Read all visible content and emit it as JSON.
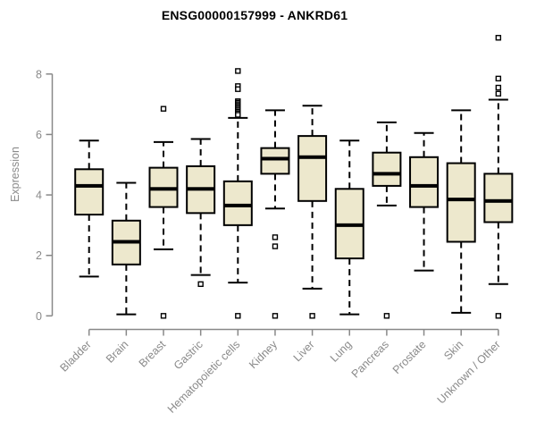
{
  "chart_data": {
    "type": "boxplot",
    "title": "ENSG00000157999 - ANKRD61",
    "ylabel": "Expression",
    "xlabel": "",
    "yticks": [
      0,
      2,
      4,
      6,
      8
    ],
    "ylim": [
      0,
      8
    ],
    "categories": [
      "Bladder",
      "Brain",
      "Breast",
      "Gastric",
      "Hematopoietic cells",
      "Kidney",
      "Liver",
      "Lung",
      "Pancreas",
      "Prostate",
      "Skin",
      "Unknown / Other"
    ],
    "boxes": [
      {
        "category": "Bladder",
        "whisker_low": 1.3,
        "q1": 3.35,
        "median": 4.3,
        "q3": 4.85,
        "whisker_high": 5.8,
        "outliers": []
      },
      {
        "category": "Brain",
        "whisker_low": 0.05,
        "q1": 1.7,
        "median": 2.45,
        "q3": 3.15,
        "whisker_high": 4.4,
        "outliers": []
      },
      {
        "category": "Breast",
        "whisker_low": 2.2,
        "q1": 3.6,
        "median": 4.2,
        "q3": 4.9,
        "whisker_high": 5.75,
        "outliers": [
          6.85,
          0.0
        ]
      },
      {
        "category": "Gastric",
        "whisker_low": 1.35,
        "q1": 3.4,
        "median": 4.2,
        "q3": 4.95,
        "whisker_high": 5.85,
        "outliers": [
          1.05
        ]
      },
      {
        "category": "Hematopoietic cells",
        "whisker_low": 1.1,
        "q1": 3.0,
        "median": 3.65,
        "q3": 4.45,
        "whisker_high": 6.55,
        "outliers": [
          8.1,
          7.6,
          7.5,
          7.1,
          7.05,
          7.0,
          6.95,
          6.9,
          6.85,
          6.8,
          6.75,
          6.7,
          6.65,
          0.0
        ]
      },
      {
        "category": "Kidney",
        "whisker_low": 3.55,
        "q1": 4.7,
        "median": 5.2,
        "q3": 5.55,
        "whisker_high": 6.8,
        "outliers": [
          2.6,
          2.3,
          0.0
        ]
      },
      {
        "category": "Liver",
        "whisker_low": 0.9,
        "q1": 3.8,
        "median": 5.25,
        "q3": 5.95,
        "whisker_high": 6.95,
        "outliers": [
          0.0
        ]
      },
      {
        "category": "Lung",
        "whisker_low": 0.05,
        "q1": 1.9,
        "median": 3.0,
        "q3": 4.2,
        "whisker_high": 5.8,
        "outliers": []
      },
      {
        "category": "Pancreas",
        "whisker_low": 3.65,
        "q1": 4.3,
        "median": 4.7,
        "q3": 5.4,
        "whisker_high": 6.4,
        "outliers": [
          0.0
        ]
      },
      {
        "category": "Prostate",
        "whisker_low": 1.5,
        "q1": 3.6,
        "median": 4.3,
        "q3": 5.25,
        "whisker_high": 6.05,
        "outliers": []
      },
      {
        "category": "Skin",
        "whisker_low": 0.1,
        "q1": 2.45,
        "median": 3.85,
        "q3": 5.05,
        "whisker_high": 6.8,
        "outliers": []
      },
      {
        "category": "Unknown / Other",
        "whisker_low": 1.05,
        "q1": 3.1,
        "median": 3.8,
        "q3": 4.7,
        "whisker_high": 7.15,
        "outliers": [
          9.2,
          7.85,
          7.55,
          7.35,
          0.0
        ]
      }
    ],
    "style": {
      "box_fill": "#EDE8CD",
      "box_stroke": "#000000",
      "median_color": "#000000",
      "outlier_fill": "#FFFFFF",
      "axis_color": "#888888",
      "label_color": "#8A8A8A",
      "title_color": "#000000",
      "background": "#FFFFFF"
    },
    "layout": {
      "grid": false,
      "legend": false,
      "x_label_rotation_deg": 45,
      "whisker_style": "dashed"
    }
  }
}
